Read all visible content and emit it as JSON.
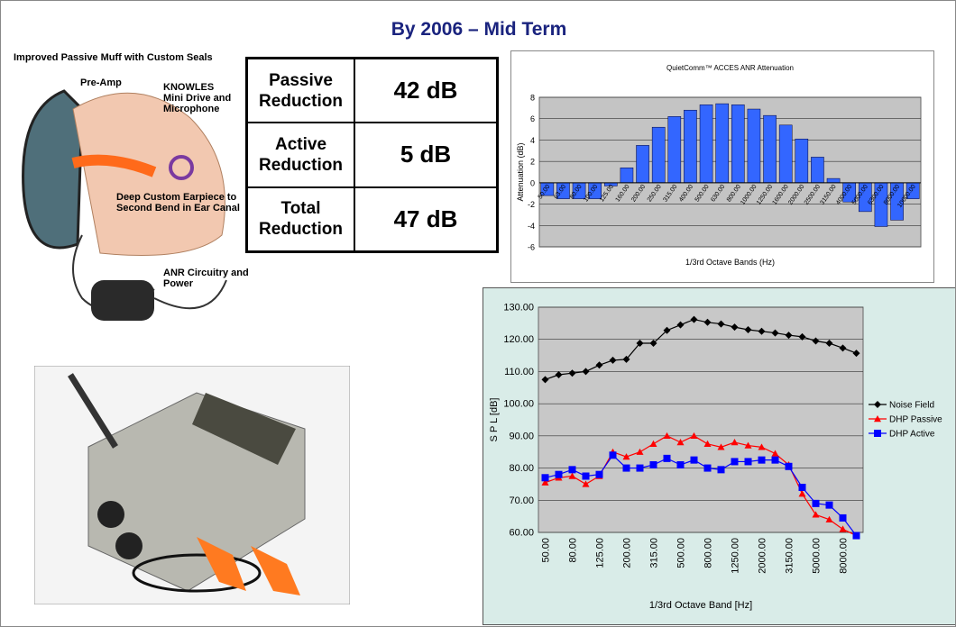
{
  "title": "By 2006 – Mid Term",
  "diagram": {
    "labels": [
      "Improved Passive Muff with Custom Seals",
      "Pre-Amp",
      "KNOWLES Mini Drive and Microphone",
      "Deep Custom Earpiece to Second Bend in Ear Canal",
      "ANR Circuitry and Power"
    ]
  },
  "table": {
    "rows": [
      [
        "Passive Reduction",
        "42 dB"
      ],
      [
        "Active Reduction",
        "5 dB"
      ],
      [
        "Total Reduction",
        "47 dB"
      ]
    ]
  },
  "chart_data": [
    {
      "type": "bar",
      "title": "QuietComm™ ACCES ANR Attenuation",
      "x_label": "1/3rd Octave Bands (Hz)",
      "y_label": "Attenuation (dB)",
      "categories": [
        "50.00",
        "63.00",
        "80.00",
        "100.00",
        "125.00",
        "160.00",
        "200.00",
        "250.00",
        "315.00",
        "400.00",
        "500.00",
        "630.00",
        "800.00",
        "1000.00",
        "1250.00",
        "1600.00",
        "2000.00",
        "2500.00",
        "3150.00",
        "4000.00",
        "5000.00",
        "6300.00",
        "8000.00",
        "10000.00"
      ],
      "values": [
        -1.2,
        -1.5,
        -1.5,
        -1.5,
        -0.3,
        1.4,
        3.5,
        5.2,
        6.2,
        6.8,
        7.3,
        7.4,
        7.3,
        6.9,
        6.3,
        5.4,
        4.1,
        2.4,
        0.4,
        -1.8,
        -2.7,
        -4.1,
        -3.5,
        -1.5
      ],
      "color": "#3366ff",
      "ylim": [
        -6,
        8
      ],
      "yticks": [
        -6,
        -4,
        -2,
        0,
        2,
        4,
        6,
        8
      ],
      "grid": true
    },
    {
      "type": "line",
      "x_label": "1/3rd Octave Band  [Hz]",
      "y_label": "S P L  [dB]",
      "categories": [
        "50.00",
        null,
        "80.00",
        null,
        "125.00",
        null,
        "200.00",
        null,
        "315.00",
        null,
        "500.00",
        null,
        "800.00",
        null,
        "1250.00",
        null,
        "2000.00",
        null,
        "3150.00",
        null,
        "5000.00",
        null,
        "8000.00",
        null
      ],
      "series": [
        {
          "name": "Noise Field",
          "color": "#000000",
          "marker": "diamond",
          "values": [
            107.5,
            109,
            109.5,
            110,
            112,
            113.5,
            113.8,
            118.8,
            118.8,
            122.8,
            124.5,
            126.2,
            125.3,
            124.8,
            123.8,
            123,
            122.5,
            122,
            121.3,
            120.8,
            119.5,
            118.8,
            117.3,
            115.7
          ]
        },
        {
          "name": "DHP Passive",
          "color": "#ff0000",
          "marker": "triangle",
          "values": [
            75.5,
            77,
            77.5,
            75,
            77.5,
            85,
            83.5,
            85,
            87.5,
            90,
            88,
            90,
            87.5,
            86.5,
            88,
            87,
            86.5,
            84.5,
            81,
            72,
            65.5,
            64,
            61,
            59
          ]
        },
        {
          "name": "DHP Active",
          "color": "#0000ff",
          "marker": "square",
          "values": [
            77,
            78,
            79.5,
            77.5,
            78,
            84,
            80,
            80,
            81,
            83,
            81,
            82.5,
            80,
            79.5,
            82,
            82,
            82.5,
            82.5,
            80.5,
            74,
            69,
            68.5,
            64.5,
            59
          ]
        }
      ],
      "ylim": [
        60,
        130
      ],
      "yticks": [
        {
          "value": 60,
          "label": "60.00"
        },
        {
          "value": 70,
          "label": "70.00"
        },
        {
          "value": 80,
          "label": "80.00"
        },
        {
          "value": 90,
          "label": "90.00"
        },
        {
          "value": 100,
          "label": "100.00"
        },
        {
          "value": 110,
          "label": "110.00"
        },
        {
          "value": 120,
          "label": "120.00"
        },
        {
          "value": 130,
          "label": "130.00"
        }
      ],
      "grid": true,
      "legend": "right"
    }
  ]
}
